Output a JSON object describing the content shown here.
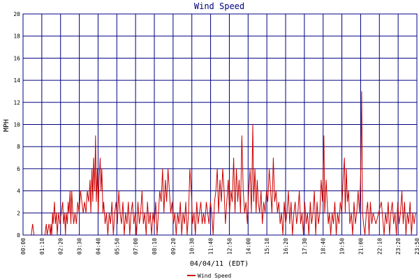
{
  "chart_data": {
    "type": "line",
    "title": "Wind Speed",
    "xlabel": "04/04/11 (EDT)",
    "ylabel": "MPH",
    "ylim": [
      0,
      20
    ],
    "yticks": [
      "0",
      "2",
      "4",
      "6",
      "8",
      "10",
      "12",
      "14",
      "16",
      "18",
      "20"
    ],
    "xticks": [
      "00:00",
      "01:10",
      "02:20",
      "03:30",
      "04:40",
      "05:50",
      "07:00",
      "08:10",
      "09:20",
      "10:30",
      "11:40",
      "12:50",
      "14:00",
      "15:10",
      "16:20",
      "17:30",
      "18:40",
      "19:50",
      "21:00",
      "22:10",
      "23:20",
      "23:50"
    ],
    "grid": true,
    "legend_position": "bottom",
    "colors": {
      "series": "#cc0000",
      "grid": "#000080",
      "title": "#000080",
      "background": "#ffffff"
    },
    "series": [
      {
        "name": "Wind Speed",
        "x_unit": "minutes since 00:00",
        "points": [
          [
            0,
            0
          ],
          [
            30,
            0
          ],
          [
            35,
            1
          ],
          [
            40,
            0
          ],
          [
            80,
            0
          ],
          [
            85,
            1
          ],
          [
            88,
            0
          ],
          [
            95,
            1
          ],
          [
            100,
            0
          ],
          [
            102,
            1
          ],
          [
            105,
            0
          ],
          [
            108,
            2
          ],
          [
            110,
            1
          ],
          [
            115,
            3
          ],
          [
            118,
            1
          ],
          [
            122,
            2
          ],
          [
            125,
            0
          ],
          [
            130,
            2
          ],
          [
            135,
            1
          ],
          [
            140,
            2
          ],
          [
            145,
            3
          ],
          [
            148,
            1
          ],
          [
            152,
            2
          ],
          [
            155,
            0
          ],
          [
            158,
            2
          ],
          [
            162,
            1
          ],
          [
            165,
            3
          ],
          [
            168,
            2
          ],
          [
            172,
            4
          ],
          [
            175,
            1
          ],
          [
            178,
            4
          ],
          [
            182,
            2
          ],
          [
            185,
            1
          ],
          [
            190,
            2
          ],
          [
            195,
            1
          ],
          [
            200,
            3
          ],
          [
            205,
            2
          ],
          [
            210,
            4
          ],
          [
            215,
            3
          ],
          [
            220,
            2
          ],
          [
            225,
            3
          ],
          [
            230,
            2
          ],
          [
            235,
            4
          ],
          [
            240,
            3
          ],
          [
            245,
            5
          ],
          [
            248,
            2
          ],
          [
            252,
            6
          ],
          [
            255,
            3
          ],
          [
            258,
            7
          ],
          [
            262,
            4
          ],
          [
            265,
            9
          ],
          [
            268,
            3
          ],
          [
            272,
            6
          ],
          [
            275,
            2
          ],
          [
            278,
            5
          ],
          [
            282,
            7
          ],
          [
            285,
            4
          ],
          [
            288,
            6
          ],
          [
            292,
            2
          ],
          [
            295,
            3
          ],
          [
            300,
            1
          ],
          [
            305,
            2
          ],
          [
            310,
            0
          ],
          [
            315,
            2
          ],
          [
            320,
            1
          ],
          [
            325,
            3
          ],
          [
            330,
            0
          ],
          [
            335,
            2
          ],
          [
            340,
            3
          ],
          [
            345,
            1
          ],
          [
            350,
            4
          ],
          [
            355,
            2
          ],
          [
            360,
            1
          ],
          [
            365,
            3
          ],
          [
            370,
            0
          ],
          [
            375,
            2
          ],
          [
            380,
            1
          ],
          [
            385,
            3
          ],
          [
            390,
            0
          ],
          [
            395,
            2
          ],
          [
            400,
            3
          ],
          [
            405,
            1
          ],
          [
            410,
            2
          ],
          [
            415,
            0
          ],
          [
            420,
            3
          ],
          [
            425,
            1
          ],
          [
            430,
            2
          ],
          [
            435,
            4
          ],
          [
            440,
            1
          ],
          [
            445,
            2
          ],
          [
            450,
            0
          ],
          [
            455,
            3
          ],
          [
            460,
            1
          ],
          [
            465,
            2
          ],
          [
            470,
            0
          ],
          [
            475,
            2
          ],
          [
            480,
            1
          ],
          [
            485,
            3
          ],
          [
            490,
            0
          ],
          [
            495,
            2
          ],
          [
            500,
            4
          ],
          [
            505,
            3
          ],
          [
            510,
            6
          ],
          [
            515,
            2
          ],
          [
            520,
            5
          ],
          [
            525,
            3
          ],
          [
            530,
            6
          ],
          [
            535,
            4
          ],
          [
            540,
            2
          ],
          [
            545,
            3
          ],
          [
            550,
            1
          ],
          [
            555,
            2
          ],
          [
            560,
            0
          ],
          [
            565,
            2
          ],
          [
            570,
            1
          ],
          [
            575,
            3
          ],
          [
            580,
            0
          ],
          [
            585,
            2
          ],
          [
            590,
            1
          ],
          [
            595,
            3
          ],
          [
            600,
            0
          ],
          [
            605,
            2
          ],
          [
            610,
            6
          ],
          [
            615,
            4
          ],
          [
            620,
            1
          ],
          [
            625,
            2
          ],
          [
            630,
            0
          ],
          [
            635,
            3
          ],
          [
            640,
            1
          ],
          [
            645,
            2
          ],
          [
            650,
            3
          ],
          [
            655,
            1
          ],
          [
            660,
            2
          ],
          [
            665,
            1
          ],
          [
            670,
            3
          ],
          [
            675,
            2
          ],
          [
            680,
            1
          ],
          [
            685,
            3
          ],
          [
            690,
            2
          ],
          [
            695,
            0
          ],
          [
            700,
            3
          ],
          [
            705,
            4
          ],
          [
            710,
            6
          ],
          [
            715,
            2
          ],
          [
            720,
            5
          ],
          [
            725,
            3
          ],
          [
            730,
            6
          ],
          [
            735,
            4
          ],
          [
            740,
            1
          ],
          [
            745,
            3
          ],
          [
            750,
            5
          ],
          [
            755,
            2
          ],
          [
            760,
            4
          ],
          [
            765,
            3
          ],
          [
            770,
            7
          ],
          [
            775,
            2
          ],
          [
            780,
            6
          ],
          [
            785,
            3
          ],
          [
            790,
            5
          ],
          [
            795,
            2
          ],
          [
            800,
            9
          ],
          [
            805,
            4
          ],
          [
            810,
            2
          ],
          [
            815,
            3
          ],
          [
            820,
            1
          ],
          [
            825,
            4
          ],
          [
            830,
            6
          ],
          [
            835,
            2
          ],
          [
            840,
            10
          ],
          [
            843,
            3
          ],
          [
            848,
            6
          ],
          [
            852,
            2
          ],
          [
            856,
            5
          ],
          [
            860,
            3
          ],
          [
            865,
            2
          ],
          [
            870,
            4
          ],
          [
            875,
            1
          ],
          [
            880,
            3
          ],
          [
            885,
            2
          ],
          [
            890,
            4
          ],
          [
            895,
            3
          ],
          [
            900,
            6
          ],
          [
            905,
            4
          ],
          [
            910,
            2
          ],
          [
            915,
            7
          ],
          [
            920,
            3
          ],
          [
            925,
            4
          ],
          [
            930,
            2
          ],
          [
            935,
            3
          ],
          [
            940,
            1
          ],
          [
            945,
            2
          ],
          [
            950,
            0
          ],
          [
            955,
            3
          ],
          [
            960,
            1
          ],
          [
            965,
            2
          ],
          [
            970,
            4
          ],
          [
            975,
            1
          ],
          [
            980,
            3
          ],
          [
            985,
            0
          ],
          [
            990,
            2
          ],
          [
            995,
            3
          ],
          [
            1000,
            1
          ],
          [
            1005,
            2
          ],
          [
            1010,
            4
          ],
          [
            1015,
            1
          ],
          [
            1020,
            2
          ],
          [
            1025,
            0
          ],
          [
            1030,
            3
          ],
          [
            1035,
            1
          ],
          [
            1040,
            2
          ],
          [
            1045,
            0
          ],
          [
            1050,
            3
          ],
          [
            1055,
            1
          ],
          [
            1060,
            2
          ],
          [
            1065,
            4
          ],
          [
            1070,
            0
          ],
          [
            1075,
            3
          ],
          [
            1080,
            1
          ],
          [
            1085,
            2
          ],
          [
            1090,
            5
          ],
          [
            1095,
            3
          ],
          [
            1100,
            9
          ],
          [
            1103,
            2
          ],
          [
            1108,
            5
          ],
          [
            1112,
            3
          ],
          [
            1116,
            1
          ],
          [
            1120,
            2
          ],
          [
            1125,
            0
          ],
          [
            1130,
            2
          ],
          [
            1135,
            1
          ],
          [
            1140,
            3
          ],
          [
            1145,
            0
          ],
          [
            1150,
            2
          ],
          [
            1155,
            1
          ],
          [
            1160,
            3
          ],
          [
            1165,
            2
          ],
          [
            1170,
            5
          ],
          [
            1175,
            7
          ],
          [
            1178,
            2
          ],
          [
            1182,
            6
          ],
          [
            1186,
            3
          ],
          [
            1190,
            4
          ],
          [
            1195,
            1
          ],
          [
            1200,
            2
          ],
          [
            1205,
            0
          ],
          [
            1210,
            3
          ],
          [
            1215,
            1
          ],
          [
            1220,
            2
          ],
          [
            1225,
            4
          ],
          [
            1230,
            2
          ],
          [
            1235,
            6
          ],
          [
            1238,
            13
          ],
          [
            1241,
            2
          ],
          [
            1245,
            1
          ],
          [
            1250,
            0
          ],
          [
            1255,
            2
          ],
          [
            1260,
            3
          ],
          [
            1265,
            0
          ],
          [
            1270,
            3
          ],
          [
            1275,
            1
          ],
          [
            1280,
            2
          ],
          [
            1290,
            1
          ],
          [
            1300,
            2
          ],
          [
            1310,
            3
          ],
          [
            1320,
            0
          ],
          [
            1325,
            2
          ],
          [
            1330,
            1
          ],
          [
            1335,
            3
          ],
          [
            1340,
            0
          ],
          [
            1345,
            2
          ],
          [
            1350,
            3
          ],
          [
            1355,
            1
          ],
          [
            1360,
            2
          ],
          [
            1365,
            0
          ],
          [
            1370,
            3
          ],
          [
            1375,
            1
          ],
          [
            1380,
            2
          ],
          [
            1385,
            4
          ],
          [
            1390,
            1
          ],
          [
            1395,
            3
          ],
          [
            1400,
            0
          ],
          [
            1405,
            2
          ],
          [
            1410,
            1
          ],
          [
            1415,
            3
          ],
          [
            1420,
            0
          ],
          [
            1425,
            2
          ],
          [
            1430,
            1
          ],
          [
            1435,
            2
          ]
        ]
      }
    ]
  }
}
